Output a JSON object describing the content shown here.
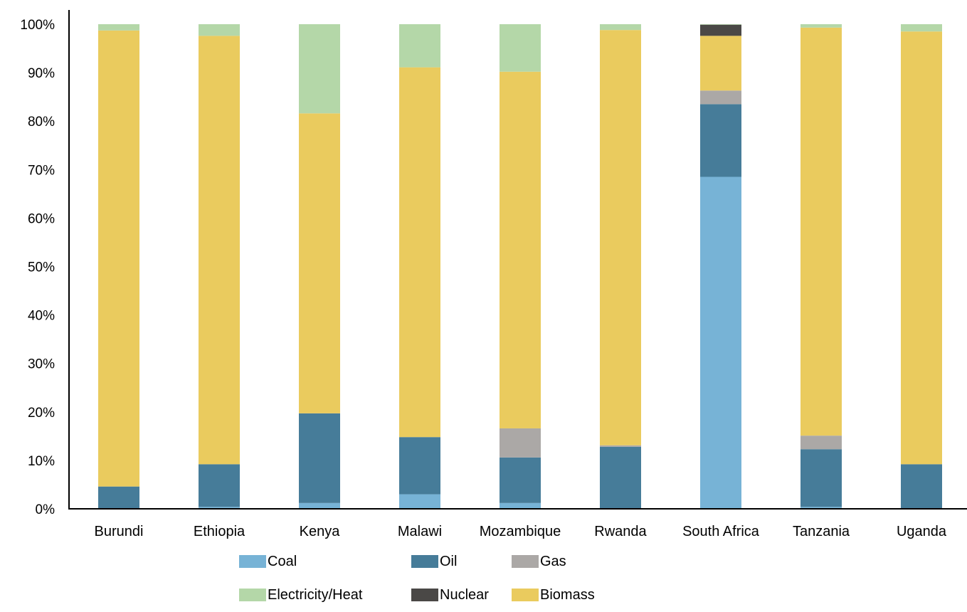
{
  "chart_data": {
    "type": "bar",
    "stacked": true,
    "percent": true,
    "categories": [
      "Burundi",
      "Ethiopia",
      "Kenya",
      "Malawi",
      "Mozambique",
      "Rwanda",
      "South Africa",
      "Tanzania",
      "Uganda"
    ],
    "series": [
      {
        "name": "Coal",
        "color": "#77b3d6",
        "values": [
          0,
          0.4,
          1.2,
          3.0,
          1.2,
          0,
          68.5,
          0.4,
          0
        ]
      },
      {
        "name": "Oil",
        "color": "#467c99",
        "values": [
          4.6,
          8.8,
          18.5,
          11.8,
          9.4,
          12.8,
          15.0,
          11.9,
          9.2
        ]
      },
      {
        "name": "Gas",
        "color": "#aba8a6",
        "values": [
          0,
          0,
          0,
          0,
          6.0,
          0.3,
          2.8,
          2.8,
          0
        ]
      },
      {
        "name": "Biomass",
        "color": "#eacb5e",
        "values": [
          94.1,
          88.4,
          61.9,
          76.3,
          73.6,
          85.7,
          11.3,
          84.2,
          89.3
        ]
      },
      {
        "name": "Nuclear",
        "color": "#4a4846",
        "values": [
          0,
          0,
          0,
          0,
          0,
          0,
          2.3,
          0,
          0
        ]
      },
      {
        "name": "Electricity/Heat",
        "color": "#b4d7a8",
        "values": [
          1.3,
          2.4,
          18.4,
          8.9,
          9.8,
          1.2,
          0.1,
          0.7,
          1.5
        ]
      }
    ],
    "yticks": [
      "0%",
      "10%",
      "20%",
      "30%",
      "40%",
      "50%",
      "60%",
      "70%",
      "80%",
      "90%",
      "100%"
    ],
    "ylim": [
      0,
      100
    ],
    "grid": false,
    "legend_position": "bottom",
    "legend_order": [
      "Coal",
      "Oil",
      "Gas",
      "Electricity/Heat",
      "Nuclear",
      "Biomass"
    ]
  }
}
